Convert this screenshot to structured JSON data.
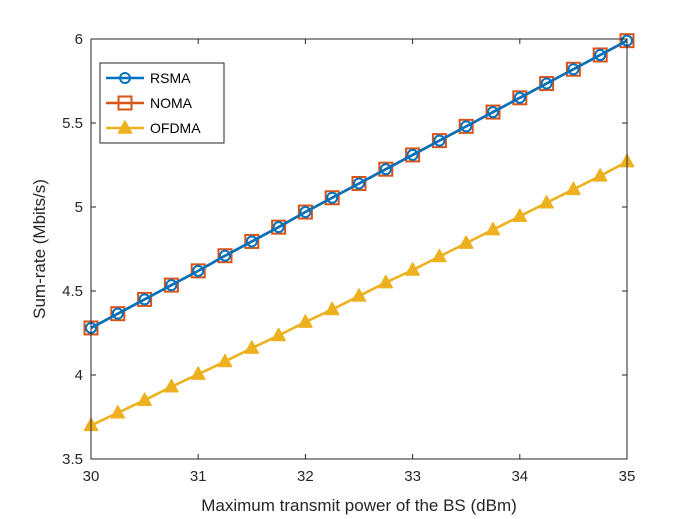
{
  "chart_data": {
    "type": "line",
    "title": "",
    "xlabel": "Maximum transmit power of the BS (dBm)",
    "ylabel": "Sum-rate (Mbits/s)",
    "xlim": [
      30,
      35
    ],
    "ylim": [
      3.5,
      6
    ],
    "xticks": [
      "30",
      "31",
      "32",
      "33",
      "34",
      "35"
    ],
    "yticks": [
      "3.5",
      "4",
      "4.5",
      "5",
      "5.5",
      "6"
    ],
    "grid": false,
    "legend_position": "top-left",
    "x": [
      30,
      30.25,
      30.5,
      30.75,
      31,
      31.25,
      31.5,
      31.75,
      32,
      32.25,
      32.5,
      32.75,
      33,
      33.25,
      33.5,
      33.75,
      34,
      34.25,
      34.5,
      34.75,
      35
    ],
    "series": [
      {
        "name": "RSMA",
        "color": "#0072BD",
        "marker": "circle",
        "values": [
          4.28,
          4.365,
          4.45,
          4.535,
          4.62,
          4.71,
          4.795,
          4.88,
          4.97,
          5.055,
          5.14,
          5.225,
          5.31,
          5.395,
          5.48,
          5.565,
          5.65,
          5.735,
          5.82,
          5.905,
          5.99
        ]
      },
      {
        "name": "NOMA",
        "color": "#D95319",
        "marker": "square",
        "values": [
          4.28,
          4.365,
          4.45,
          4.535,
          4.62,
          4.71,
          4.795,
          4.88,
          4.97,
          5.055,
          5.14,
          5.225,
          5.31,
          5.395,
          5.48,
          5.565,
          5.65,
          5.735,
          5.82,
          5.905,
          5.99
        ]
      },
      {
        "name": "OFDMA",
        "color": "#EDB120",
        "marker": "triangle",
        "values": [
          3.7,
          3.775,
          3.85,
          3.93,
          4.005,
          4.08,
          4.16,
          4.235,
          4.315,
          4.39,
          4.47,
          4.55,
          4.625,
          4.705,
          4.785,
          4.865,
          4.945,
          5.025,
          5.105,
          5.185,
          5.27
        ]
      }
    ]
  }
}
